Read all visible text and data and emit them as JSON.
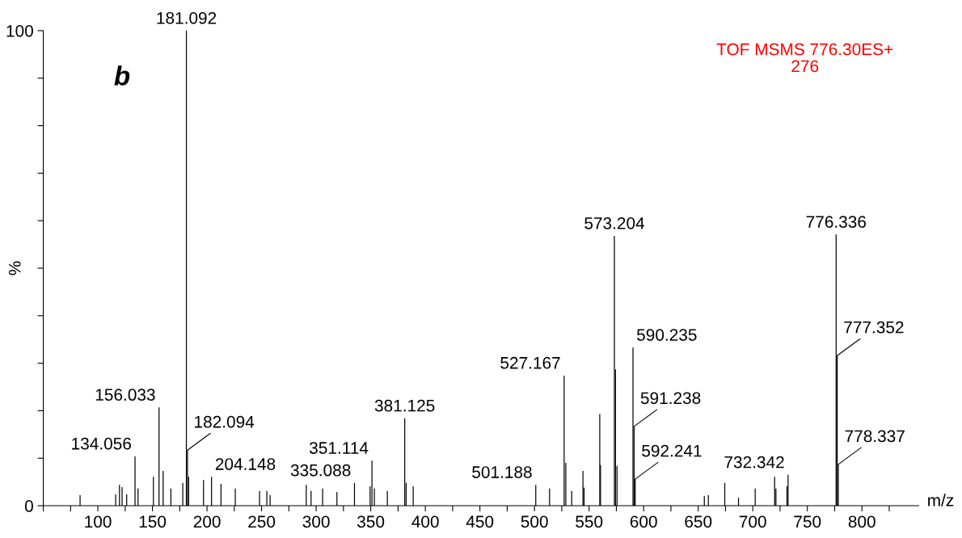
{
  "chart_data": {
    "type": "bar",
    "xlabel": "m/z",
    "ylabel": "%",
    "color": "#000000",
    "grid": false,
    "legend": false,
    "xlim": [
      50,
      852
    ],
    "ylim": [
      0,
      100
    ],
    "xticks": [
      {
        "value": 50,
        "label": null
      },
      {
        "value": 75,
        "label": null
      },
      100,
      {
        "value": 125,
        "label": null
      },
      150,
      {
        "value": 175,
        "label": null
      },
      200,
      {
        "value": 225,
        "label": null
      },
      250,
      {
        "value": 275,
        "label": null
      },
      300,
      {
        "value": 325,
        "label": null
      },
      350,
      {
        "value": 375,
        "label": null
      },
      400,
      {
        "value": 425,
        "label": null
      },
      450,
      {
        "value": 475,
        "label": null
      },
      500,
      {
        "value": 525,
        "label": null
      },
      550,
      {
        "value": 575,
        "label": null
      },
      600,
      {
        "value": 625,
        "label": null
      },
      650,
      {
        "value": 675,
        "label": null
      },
      700,
      {
        "value": 725,
        "label": null
      },
      750,
      {
        "value": 775,
        "label": null
      },
      800,
      {
        "value": 825,
        "label": null
      }
    ],
    "yticks": [
      0,
      {
        "value": 10,
        "label": null
      },
      {
        "value": 20,
        "label": null
      },
      {
        "value": 30,
        "label": null
      },
      {
        "value": 40,
        "label": null
      },
      {
        "value": 50,
        "label": null
      },
      {
        "value": 60,
        "label": null
      },
      {
        "value": 70,
        "label": null
      },
      {
        "value": 80,
        "label": null
      },
      {
        "value": 90,
        "label": null
      },
      100
    ],
    "x": [
      83.7,
      116.3,
      119.8,
      122.2,
      126.4,
      134.056,
      136.8,
      150.9,
      156.033,
      159.8,
      166.9,
      177.8,
      181.092,
      182.094,
      183.2,
      196.8,
      204.148,
      212.8,
      225.9,
      248.1,
      254.8,
      257.8,
      290.9,
      295.3,
      305.9,
      319.0,
      335.088,
      349.4,
      351.114,
      353.3,
      365.2,
      381.125,
      382.4,
      388.9,
      501.188,
      513.8,
      527.167,
      528.7,
      534.1,
      544.4,
      545.4,
      559.8,
      560.5,
      573.204,
      574.2,
      575.6,
      590.235,
      591.238,
      592.241,
      655.6,
      659.3,
      674.3,
      686.9,
      702.2,
      720.0,
      721.2,
      731.3,
      732.342,
      776.336,
      777.352,
      778.337
    ],
    "values": [
      2.2,
      2.4,
      4.4,
      3.9,
      2.4,
      10.4,
      3.6,
      6.1,
      20.7,
      7.3,
      3.6,
      4.8,
      100,
      11.7,
      6.1,
      5.4,
      6.1,
      4.6,
      3.6,
      3.1,
      3.1,
      2.2,
      4.4,
      3.1,
      3.6,
      2.9,
      4.8,
      4.1,
      9.5,
      3.6,
      3.1,
      18.4,
      4.8,
      4.1,
      4.4,
      3.6,
      27.4,
      9.0,
      3.1,
      7.3,
      3.8,
      19.3,
      8.6,
      56.8,
      28.7,
      8.4,
      33.3,
      16.7,
      5.6,
      2.0,
      2.2,
      4.8,
      1.7,
      3.6,
      6.1,
      3.6,
      4.1,
      6.5,
      57.1,
      31.6,
      8.7
    ],
    "annotations": [
      "b",
      "TOF MSMS 776.30ES+\n276",
      {
        "text": "134.056",
        "x": 134.056,
        "y": 10.4
      },
      {
        "text": "156.033",
        "x": 156.033,
        "y": 20.7
      },
      {
        "text": "181.092",
        "x": 181.092,
        "y": 100
      },
      {
        "text": "182.094",
        "x": 182.094,
        "y": 11.7
      },
      {
        "text": "204.148",
        "x": 204.148,
        "y": 6.1
      },
      {
        "text": "335.088",
        "x": 335.088,
        "y": 4.8
      },
      {
        "text": "351.114",
        "x": 351.114,
        "y": 9.5
      },
      {
        "text": "381.125",
        "x": 381.125,
        "y": 18.4
      },
      {
        "text": "501.188",
        "x": 501.188,
        "y": 4.4
      },
      {
        "text": "527.167",
        "x": 527.167,
        "y": 27.4
      },
      {
        "text": "573.204",
        "x": 573.204,
        "y": 56.8
      },
      {
        "text": "590.235",
        "x": 590.235,
        "y": 33.3
      },
      {
        "text": "591.238",
        "x": 591.238,
        "y": 16.7
      },
      {
        "text": "592.241",
        "x": 592.241,
        "y": 5.6
      },
      {
        "text": "732.342",
        "x": 732.342,
        "y": 6.5
      },
      {
        "text": "776.336",
        "x": 776.336,
        "y": 57.1
      },
      {
        "text": "777.352",
        "x": 777.352,
        "y": 31.6
      },
      {
        "text": "778.337",
        "x": 778.337,
        "y": 8.7
      }
    ]
  }
}
